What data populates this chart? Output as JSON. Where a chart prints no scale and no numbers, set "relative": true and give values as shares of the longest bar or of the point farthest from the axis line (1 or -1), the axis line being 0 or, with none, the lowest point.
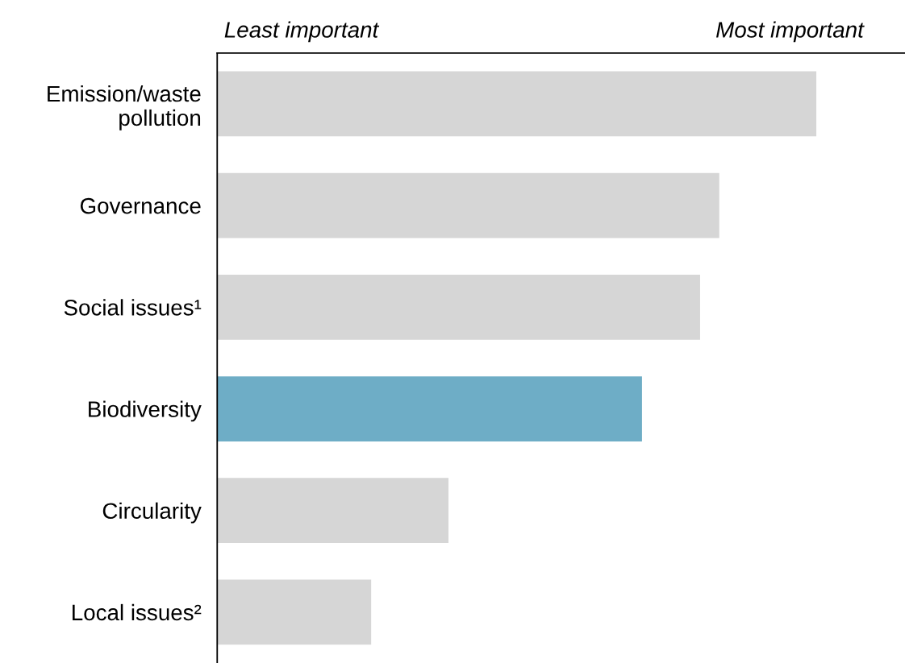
{
  "chart_data": {
    "type": "bar",
    "orientation": "horizontal",
    "relative": true,
    "categories": [
      "Emission/waste\npollution",
      "Governance",
      "Social issues¹",
      "Biodiversity",
      "Circularity",
      "Local issues²"
    ],
    "values": [
      1,
      0.838,
      0.806,
      0.709,
      0.386,
      0.257
    ],
    "colors": [
      "#d6d6d6",
      "#d6d6d6",
      "#d6d6d6",
      "#6eadc6",
      "#d6d6d6",
      "#d6d6d6"
    ],
    "annotations": [
      "Least important",
      "Most important"
    ],
    "grid": false,
    "legend": false
  }
}
